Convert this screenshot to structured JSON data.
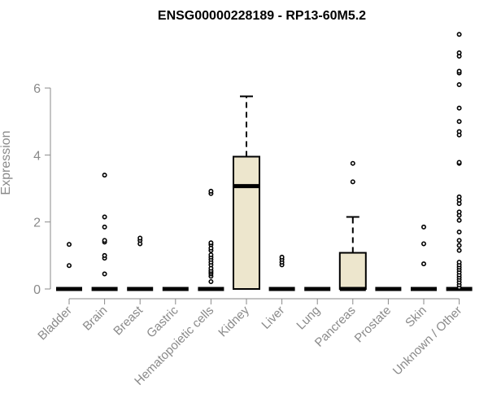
{
  "chart_data": {
    "type": "box",
    "title": "ENSG00000228189 - RP13-60M5.2",
    "ylabel": "Expression",
    "xlabel": "",
    "ylim": [
      0,
      7.8
    ],
    "yticks": [
      0,
      2,
      4,
      6
    ],
    "grid": false,
    "colors": {
      "box_fill": "#ede6cd",
      "stroke": "#000000",
      "axis": "#8a8a8a",
      "text": "#8a8a8a"
    },
    "categories": [
      "Bladder",
      "Brain",
      "Breast",
      "Gastric",
      "Hematopoietic cells",
      "Kidney",
      "Liver",
      "Lung",
      "Pancreas",
      "Prostate",
      "Skin",
      "Unknown / Other"
    ],
    "boxes": [
      {
        "q1": 0,
        "median": 0,
        "q3": 0,
        "whisker_low": 0,
        "whisker_high": 0,
        "outliers": [
          0.7,
          1.33
        ]
      },
      {
        "q1": 0,
        "median": 0,
        "q3": 0,
        "whisker_low": 0,
        "whisker_high": 0,
        "outliers": [
          0.45,
          0.92,
          1.0,
          1.4,
          1.45,
          1.85,
          2.15,
          3.4
        ]
      },
      {
        "q1": 0,
        "median": 0,
        "q3": 0,
        "whisker_low": 0,
        "whisker_high": 0,
        "outliers": [
          1.35,
          1.45,
          1.52
        ]
      },
      {
        "q1": 0,
        "median": 0,
        "q3": 0,
        "whisker_low": 0,
        "whisker_high": 0,
        "outliers": []
      },
      {
        "q1": 0,
        "median": 0,
        "q3": 0,
        "whisker_low": 0,
        "whisker_high": 0,
        "outliers": [
          0.22,
          0.38,
          0.45,
          0.5,
          0.55,
          0.62,
          0.72,
          0.8,
          0.88,
          0.95,
          1.02,
          1.15,
          1.22,
          1.32,
          1.38,
          2.85,
          2.92
        ]
      },
      {
        "q1": 0,
        "median": 3.07,
        "q3": 3.95,
        "whisker_low": 0,
        "whisker_high": 5.75,
        "outliers": []
      },
      {
        "q1": 0,
        "median": 0,
        "q3": 0,
        "whisker_low": 0,
        "whisker_high": 0,
        "outliers": [
          0.72,
          0.8,
          0.88,
          0.95
        ]
      },
      {
        "q1": 0,
        "median": 0,
        "q3": 0,
        "whisker_low": 0,
        "whisker_high": 0,
        "outliers": []
      },
      {
        "q1": 0,
        "median": 0,
        "q3": 1.08,
        "whisker_low": 0,
        "whisker_high": 2.15,
        "outliers": [
          3.2,
          3.75
        ]
      },
      {
        "q1": 0,
        "median": 0,
        "q3": 0,
        "whisker_low": 0,
        "whisker_high": 0,
        "outliers": []
      },
      {
        "q1": 0,
        "median": 0,
        "q3": 0,
        "whisker_low": 0,
        "whisker_high": 0,
        "outliers": [
          0.75,
          1.35,
          1.85
        ]
      },
      {
        "q1": 0,
        "median": 0,
        "q3": 0,
        "whisker_low": 0,
        "whisker_high": 0,
        "outliers": [
          0.05,
          0.12,
          0.2,
          0.28,
          0.35,
          0.42,
          0.5,
          0.58,
          0.65,
          0.72,
          0.8,
          1.15,
          1.3,
          1.45,
          1.7,
          2.05,
          2.2,
          2.3,
          2.55,
          2.65,
          2.75,
          3.75,
          3.78,
          4.6,
          4.7,
          5.0,
          5.4,
          6.1,
          6.45,
          6.5,
          6.95,
          7.05,
          7.6
        ]
      }
    ]
  }
}
